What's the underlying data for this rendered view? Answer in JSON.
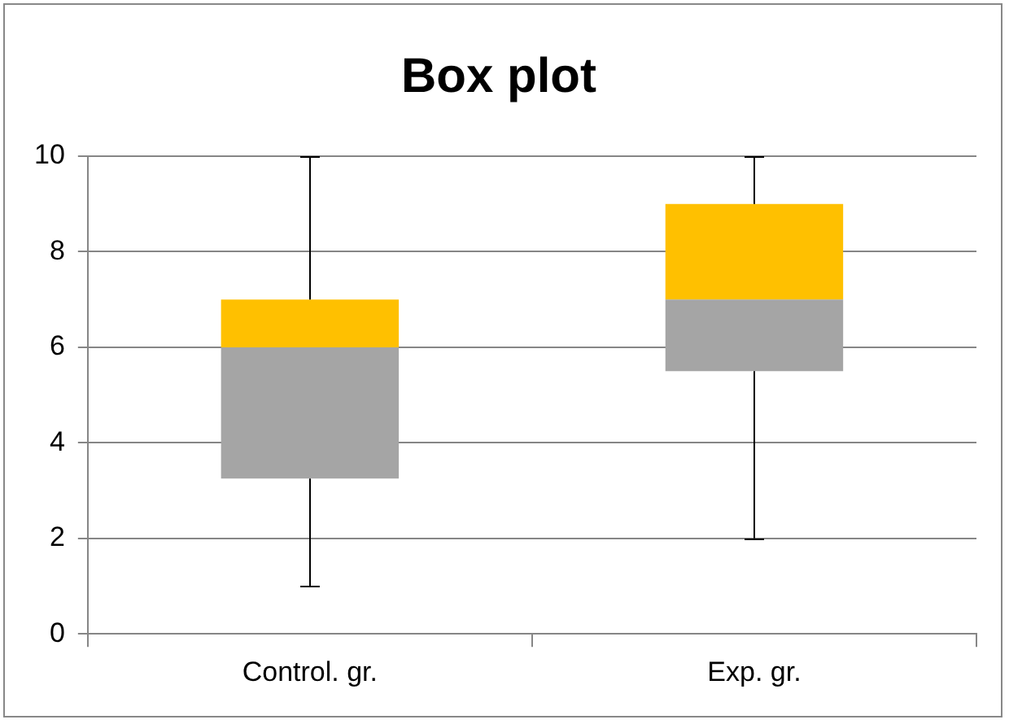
{
  "chart_data": {
    "type": "box",
    "title": "Box plot",
    "categories": [
      "Control. gr.",
      "Exp. gr."
    ],
    "series": [
      {
        "color": "#a5a5a5",
        "boxes": [
          {
            "low": 1,
            "q1": 3.25,
            "median": 6,
            "q3": 7,
            "high": 10
          },
          {
            "low": 2,
            "q1": 5.5,
            "median": 7,
            "q3": 9,
            "high": 10
          }
        ]
      }
    ],
    "color": "#ffc000",
    "ylim": [
      0,
      10
    ],
    "yticks": [
      0,
      2,
      4,
      6,
      8,
      10
    ],
    "grid": "y",
    "legend": false
  }
}
